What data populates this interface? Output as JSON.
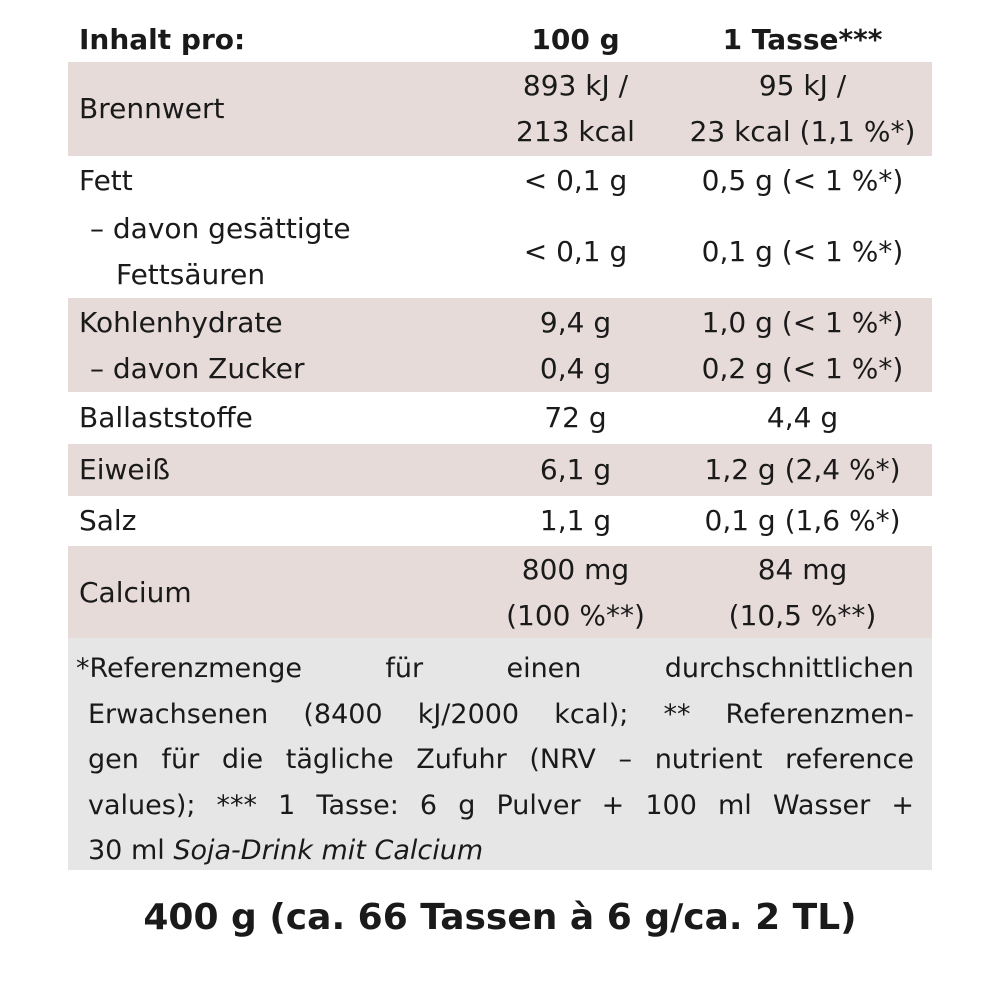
{
  "header": {
    "col1": "Inhalt pro:",
    "col2": "100 g",
    "col3": "1 Tasse***"
  },
  "rows": [
    {
      "label": [
        "Brennwert"
      ],
      "v100": [
        "893 kJ /",
        "213 kcal"
      ],
      "vcup": [
        "95 kJ /",
        "23 kcal (1,1 %*)"
      ]
    },
    {
      "label": [
        "Fett"
      ],
      "v100": [
        "< 0,1 g"
      ],
      "vcup": [
        "0,5 g (< 1 %*)"
      ]
    },
    {
      "label": [
        "– davon gesättigte",
        "Fettsäuren"
      ],
      "v100": [
        "< 0,1 g"
      ],
      "vcup": [
        "0,1 g (< 1 %*)"
      ]
    },
    {
      "label": [
        "Kohlenhydrate"
      ],
      "v100": [
        "9,4 g"
      ],
      "vcup": [
        "1,0 g (< 1 %*)"
      ]
    },
    {
      "label": [
        "– davon Zucker"
      ],
      "v100": [
        "0,4 g"
      ],
      "vcup": [
        "0,2 g (< 1 %*)"
      ]
    },
    {
      "label": [
        "Ballaststoffe"
      ],
      "v100": [
        "72 g"
      ],
      "vcup": [
        "4,4 g"
      ]
    },
    {
      "label": [
        "Eiweiß"
      ],
      "v100": [
        "6,1 g"
      ],
      "vcup": [
        "1,2 g (2,4 %*)"
      ]
    },
    {
      "label": [
        "Salz"
      ],
      "v100": [
        "1,1 g"
      ],
      "vcup": [
        "0,1 g (1,6 %*)"
      ]
    },
    {
      "label": [
        "Calcium"
      ],
      "v100": [
        "800 mg",
        "(100 %**)"
      ],
      "vcup": [
        "84 mg",
        "(10,5 %**)"
      ]
    }
  ],
  "footnote": {
    "line1": "*Referenzmenge für einen durchschnittlichen",
    "line2": "Erwachsenen (8400 kJ/2000 kcal); ** Referenzmen-",
    "line3": "gen für die tägliche Zufuhr (NRV – nutrient reference",
    "line4": "values); *** 1 Tasse: 6 g Pulver + 100 ml Wasser +",
    "line5_plain": "30 ml ",
    "line5_italic": "Soja-Drink mit Calcium"
  },
  "package_size": "400 g (ca. 66 Tassen à 6 g/ca. 2 TL)",
  "colors": {
    "shaded_row": "#e6dbd9",
    "footnote_bg": "#e6e6e6",
    "text": "#1a1a1a"
  }
}
